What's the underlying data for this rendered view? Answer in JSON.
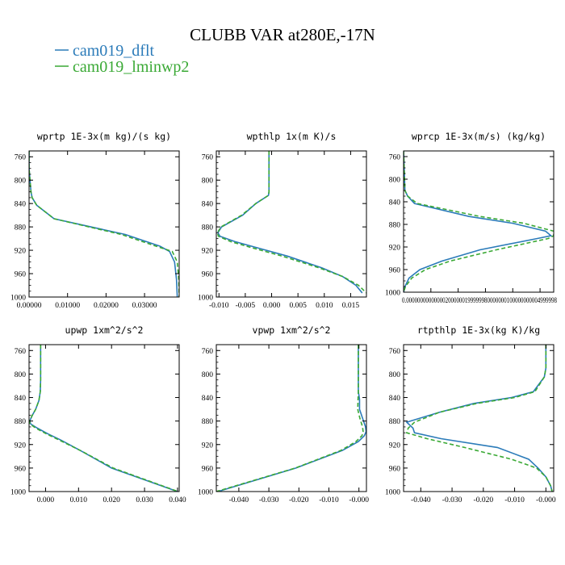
{
  "figure": {
    "title": "CLUBB VAR at280E,-17N",
    "legend": [
      {
        "label": "cam019_dflt",
        "color": "#2b7bb9",
        "dash": "solid"
      },
      {
        "label": "cam019_lminwp2",
        "color": "#3aa935",
        "dash": "dashed"
      }
    ]
  },
  "chart_data": [
    {
      "type": "line",
      "title": "wprtp  1E-3x(m kg)/(s kg)",
      "xlim": [
        0,
        0.039
      ],
      "ylim": [
        1000,
        750
      ],
      "xticks": [
        0,
        0.01,
        0.02,
        0.03
      ],
      "xtick_labels": [
        "0.00000",
        "0.01000",
        "0.02000",
        "0.03000"
      ],
      "yticks": [
        760,
        800,
        840,
        880,
        920,
        960,
        1000
      ],
      "ytick_labels": [
        "760",
        "800",
        "840",
        "880",
        "920",
        "960",
        "1000"
      ],
      "series": [
        {
          "y": [
            750,
            780,
            820,
            830,
            843,
            866,
            893,
            913,
            922,
            940,
            970,
            1000
          ],
          "x": [
            0,
            0,
            0.0005,
            0.0008,
            0.002,
            0.0065,
            0.025,
            0.034,
            0.0365,
            0.0378,
            0.0383,
            0.0385
          ]
        },
        {
          "y": [
            750,
            780,
            820,
            830,
            843,
            866,
            893,
            913,
            922,
            940,
            970,
            1000
          ],
          "x": [
            0,
            0,
            0.0005,
            0.0008,
            0.002,
            0.0065,
            0.024,
            0.033,
            0.0372,
            0.0385,
            0.0389,
            0.039
          ]
        }
      ]
    },
    {
      "type": "line",
      "title": "wpthlp  1x(m K)/s",
      "xlim": [
        -0.0105,
        0.018
      ],
      "ylim": [
        1000,
        750
      ],
      "xticks": [
        -0.01,
        -0.005,
        0,
        0.005,
        0.01,
        0.015
      ],
      "xtick_labels": [
        "-0.010",
        "-0.005",
        "0.000",
        "0.005",
        "0.010",
        "0.015"
      ],
      "yticks": [
        760,
        800,
        840,
        880,
        920,
        960,
        1000
      ],
      "ytick_labels": [
        "760",
        "800",
        "840",
        "880",
        "920",
        "960",
        "1000"
      ],
      "series": [
        {
          "y": [
            750,
            800,
            820,
            826,
            840,
            860,
            880,
            890,
            896,
            905,
            915,
            930,
            950,
            965,
            980,
            993
          ],
          "x": [
            -0.0005,
            -0.0005,
            -0.0005,
            -0.0006,
            -0.003,
            -0.0055,
            -0.0095,
            -0.0102,
            -0.0098,
            -0.007,
            -0.003,
            0.003,
            0.0095,
            0.0135,
            0.016,
            0.0172
          ]
        },
        {
          "y": [
            750,
            800,
            820,
            826,
            840,
            860,
            880,
            890,
            896,
            905,
            915,
            930,
            950,
            965,
            980,
            993
          ],
          "x": [
            -0.0005,
            -0.0005,
            -0.0005,
            -0.0006,
            -0.003,
            -0.0057,
            -0.0096,
            -0.0103,
            -0.0101,
            -0.0078,
            -0.004,
            0.002,
            0.009,
            0.0135,
            0.0165,
            0.018
          ]
        }
      ]
    },
    {
      "type": "line",
      "title": "wprcp  1E-3x(m/s) (kg/kg)",
      "xlim": [
        0,
        5.5e-06
      ],
      "ylim": [
        1000,
        750
      ],
      "xtick_labels_text": "0.000000000000002000000199999980000000100000000004999998",
      "yticks": [
        760,
        800,
        840,
        880,
        920,
        960,
        1000
      ],
      "ytick_labels": [
        "760",
        "800",
        "840",
        "880",
        "920",
        "960",
        "1000"
      ],
      "series": [
        {
          "y": [
            750,
            820,
            830,
            843,
            866,
            878,
            892,
            900,
            905,
            925,
            945,
            960,
            975,
            990,
            1000
          ],
          "x": [
            0,
            5e-08,
            1.5e-07,
            4e-07,
            2.4e-06,
            4e-06,
            5.2e-06,
            5.4e-06,
            4.9e-06,
            2.8e-06,
            1.4e-06,
            6e-07,
            2e-07,
            5e-08,
            0
          ]
        },
        {
          "y": [
            750,
            820,
            830,
            843,
            866,
            878,
            892,
            900,
            905,
            925,
            945,
            960,
            975,
            990,
            1000
          ],
          "x": [
            0,
            5e-08,
            1.5e-07,
            5e-07,
            2.8e-06,
            4.4e-06,
            5.5e-06,
            5.5e-06,
            5.3e-06,
            3.4e-06,
            1.7e-06,
            8e-07,
            3e-07,
            7e-08,
            0
          ]
        }
      ]
    },
    {
      "type": "line",
      "title": "upwp  1xm^2/s^2",
      "xlim": [
        -0.005,
        0.0405
      ],
      "ylim": [
        1000,
        750
      ],
      "xticks": [
        0,
        0.01,
        0.02,
        0.03,
        0.04
      ],
      "xtick_labels": [
        "0.000",
        "0.010",
        "0.020",
        "0.030",
        "0.040"
      ],
      "yticks": [
        760,
        800,
        840,
        880,
        920,
        960,
        1000
      ],
      "ytick_labels": [
        "760",
        "800",
        "840",
        "880",
        "920",
        "960",
        "1000"
      ],
      "series": [
        {
          "y": [
            750,
            810,
            830,
            845,
            860,
            870,
            880,
            885,
            892,
            902,
            912,
            930,
            960,
            1000
          ],
          "x": [
            -0.0015,
            -0.0015,
            -0.0016,
            -0.002,
            -0.003,
            -0.004,
            -0.0048,
            -0.0045,
            -0.0025,
            0.0008,
            0.0045,
            0.0105,
            0.02,
            0.04
          ]
        },
        {
          "y": [
            750,
            810,
            830,
            845,
            860,
            870,
            880,
            885,
            892,
            902,
            912,
            930,
            960,
            1000
          ],
          "x": [
            -0.0015,
            -0.0015,
            -0.0016,
            -0.002,
            -0.003,
            -0.004,
            -0.0049,
            -0.0047,
            -0.003,
            0.0003,
            0.004,
            0.0105,
            0.0205,
            0.0402
          ]
        }
      ]
    },
    {
      "type": "line",
      "title": "vpwp  1xm^2/s^2",
      "xlim": [
        -0.0475,
        0.0025
      ],
      "ylim": [
        1000,
        750
      ],
      "xticks": [
        -0.04,
        -0.03,
        -0.02,
        -0.01,
        0
      ],
      "xtick_labels": [
        "-0.040",
        "-0.030",
        "-0.020",
        "-0.010",
        "-0.000"
      ],
      "yticks": [
        760,
        800,
        840,
        880,
        920,
        960,
        1000
      ],
      "ytick_labels": [
        "760",
        "800",
        "840",
        "880",
        "920",
        "960",
        "1000"
      ],
      "series": [
        {
          "y": [
            750,
            800,
            830,
            843,
            860,
            875,
            890,
            898,
            905,
            915,
            930,
            960,
            1000
          ],
          "x": [
            -0.0002,
            -0.0002,
            -0.0002,
            0.0002,
            0.0002,
            0.0012,
            0.0022,
            0.0024,
            0.0018,
            -0.0002,
            -0.0055,
            -0.021,
            -0.047
          ]
        },
        {
          "y": [
            750,
            800,
            830,
            843,
            860,
            875,
            890,
            898,
            905,
            915,
            930,
            960,
            1000
          ],
          "x": [
            -0.0002,
            -0.0002,
            -0.0002,
            -0.0003,
            -0.0004,
            0.0003,
            0.0012,
            0.0014,
            0.001,
            -0.001,
            -0.006,
            -0.0212,
            -0.0475
          ]
        }
      ]
    },
    {
      "type": "line",
      "title": "rtpthlp  1E-3x(kg K)/kg",
      "xlim": [
        -0.0455,
        0.0025
      ],
      "ylim": [
        1000,
        750
      ],
      "xticks": [
        -0.04,
        -0.03,
        -0.02,
        -0.01,
        0
      ],
      "xtick_labels": [
        "-0.040",
        "-0.030",
        "-0.020",
        "-0.010",
        "-0.000"
      ],
      "yticks": [
        760,
        800,
        840,
        880,
        920,
        960,
        1000
      ],
      "ytick_labels": [
        "760",
        "800",
        "840",
        "880",
        "920",
        "960",
        "1000"
      ],
      "series": [
        {
          "y": [
            750,
            790,
            805,
            830,
            840,
            850,
            865,
            882,
            892,
            900,
            910,
            925,
            945,
            960,
            975,
            990,
            1000
          ],
          "x": [
            0,
            0,
            -0.0005,
            -0.004,
            -0.011,
            -0.023,
            -0.034,
            -0.0445,
            -0.0425,
            -0.042,
            -0.0335,
            -0.0155,
            -0.0055,
            -0.0025,
            0,
            0.0015,
            0.002
          ]
        },
        {
          "y": [
            750,
            790,
            805,
            830,
            840,
            850,
            865,
            882,
            892,
            900,
            910,
            925,
            945,
            960,
            975,
            990,
            1000
          ],
          "x": [
            0,
            0,
            -0.0005,
            -0.0035,
            -0.01,
            -0.022,
            -0.034,
            -0.042,
            -0.044,
            -0.0445,
            -0.038,
            -0.026,
            -0.011,
            -0.003,
            0,
            0.0015,
            0.002
          ]
        }
      ]
    }
  ]
}
